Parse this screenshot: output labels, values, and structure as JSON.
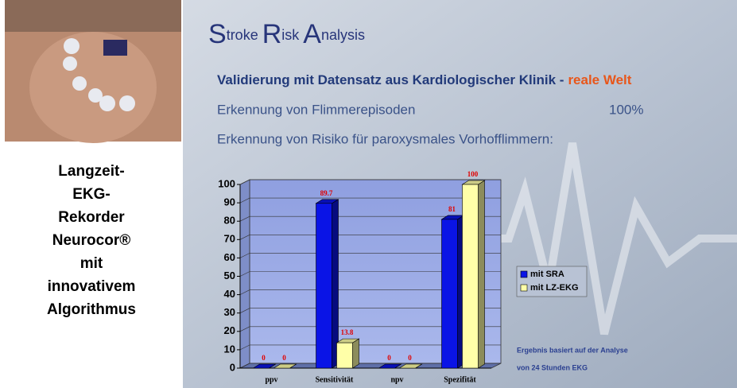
{
  "slide": {
    "title_parts": [
      "S",
      "troke",
      "R",
      "isk",
      "A",
      "nalysis"
    ],
    "subtitle": "Validierung mit Datensatz aus Kardiologischer Klinik -",
    "subtitle_highlight": "reale Welt",
    "line1": "Erkennung von Flimmerepisoden",
    "line1_value": "100%",
    "line2": "Erkennung von Risiko für paroxysmales Vorhofflimmern:",
    "caption": [
      "Langzeit-",
      "EKG-",
      "Rekorder",
      "Neurocor®",
      "mit",
      "innovativem",
      "Algorithmus"
    ]
  },
  "chart_data": {
    "type": "bar3d",
    "categories": [
      "ppv",
      "Sensitivität",
      "npv",
      "Spezifität"
    ],
    "series": [
      {
        "name": "mit SRA",
        "color": "#0a14e6",
        "values": [
          0,
          89.7,
          0,
          81
        ]
      },
      {
        "name": "mit LZ-EKG",
        "color": "#ffffa8",
        "values": [
          0,
          13.8,
          0,
          100
        ]
      }
    ],
    "ylim": [
      0,
      100
    ],
    "yticks": [
      0,
      10,
      20,
      30,
      40,
      50,
      60,
      70,
      80,
      90,
      100
    ],
    "grid": true,
    "legend": "right",
    "annotations": [
      "Ergebnis basiert auf der Analyse",
      "von 24 Stunden EKG"
    ]
  }
}
